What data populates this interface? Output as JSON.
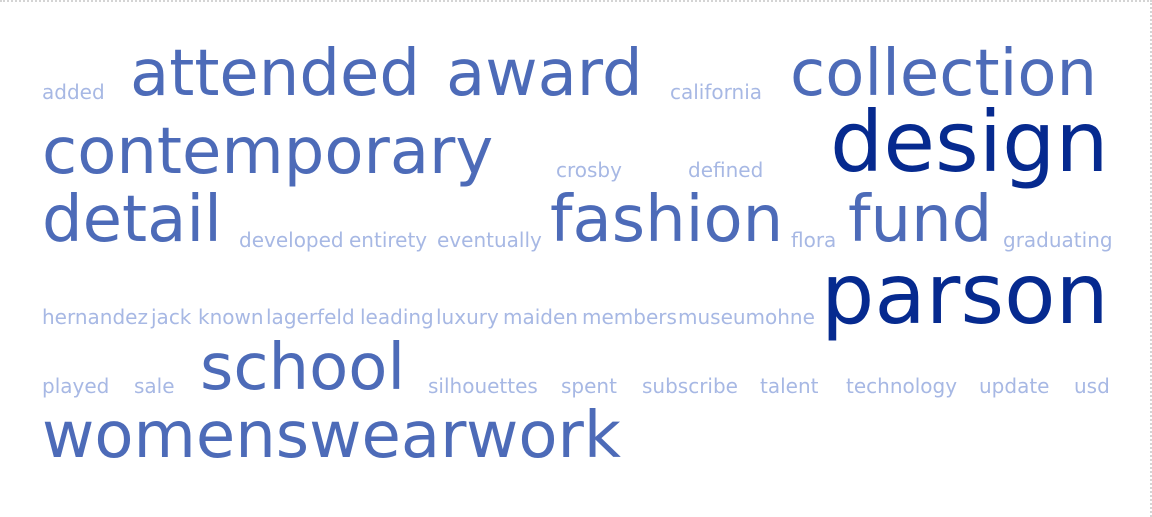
{
  "colors": {
    "small": "#a7b8e4",
    "medium": "#4d6bb8",
    "large": "#062a8f"
  },
  "words": {
    "added": "added",
    "attended": "attended",
    "award": "award",
    "california": "california",
    "collection": "collection",
    "contemporary": "contemporary",
    "crosby": "crosby",
    "defined": "defined",
    "design": "design",
    "detail": "detail",
    "developed": "developed",
    "entirety": "entirety",
    "eventually": "eventually",
    "fashion": "fashion",
    "flora": "flora",
    "fund": "fund",
    "graduating": "graduating",
    "hernandez": "hernandez",
    "jack": "jack",
    "known": "known",
    "lagerfeld": "lagerfeld",
    "leading": "leading",
    "luxury": "luxury",
    "maiden": "maiden",
    "members": "members",
    "museum": "museum",
    "ohne": "ohne",
    "parson": "parson",
    "played": "played",
    "sale": "sale",
    "school": "school",
    "silhouettes": "silhouettes",
    "spent": "spent",
    "subscribe": "subscribe",
    "talent": "talent",
    "technology": "technology",
    "update": "update",
    "usd": "usd",
    "womenswear": "womenswear",
    "work": "work"
  }
}
